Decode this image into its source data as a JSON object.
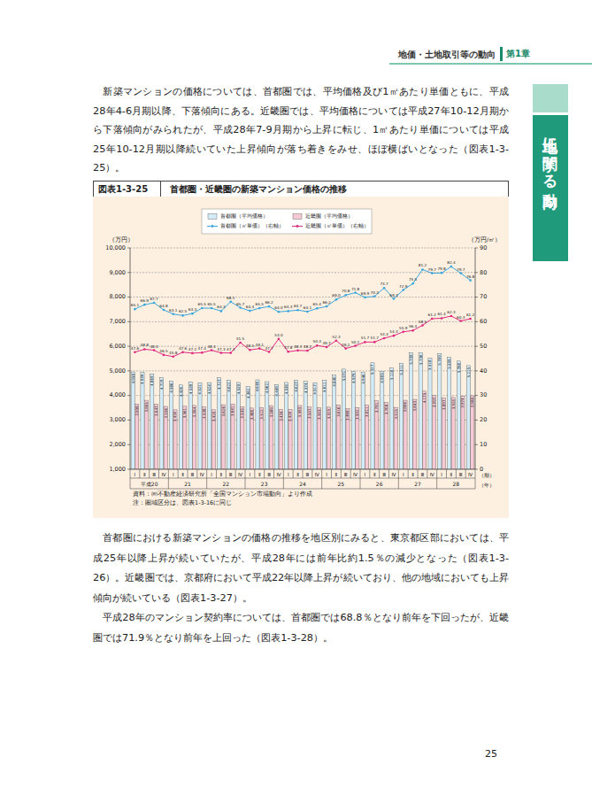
{
  "header": {
    "section": "地価・土地取引等の動向",
    "chapter": "第1章"
  },
  "side_tab": "土地に関する動向",
  "paragraphs_before": [
    "新築マンションの価格については、首都圏では、平均価格及び1㎡あたり単価ともに、平成28年4-6月期以降、下落傾向にある。近畿圏では、平均価格については平成27年10-12月期から下落傾向がみられたが、平成28年7-9月期から上昇に転じ、1㎡あたり単価については平成25年10-12月期以降続いていた上昇傾向が落ち着きをみせ、ほぼ横ばいとなった（図表1-3-25）。"
  ],
  "figure": {
    "label": "図表1-3-25",
    "source": "資料：㈱不動産経済研究所「全国マンション市場動向」より作成",
    "note": "注：圏域区分は、図表1-3-16に同じ"
  },
  "chart_data": {
    "type": "bar",
    "title": "首都圏・近畿圏の新築マンション価格の推移",
    "ylabel": "（万円）",
    "y2label": "（万円/㎡）",
    "xlabel": "（期）",
    "xgroup_label": "（年）",
    "categories": [
      "Ⅰ",
      "Ⅱ",
      "Ⅲ",
      "Ⅳ",
      "Ⅰ",
      "Ⅱ",
      "Ⅲ",
      "Ⅳ",
      "Ⅰ",
      "Ⅱ",
      "Ⅲ",
      "Ⅳ",
      "Ⅰ",
      "Ⅱ",
      "Ⅲ",
      "Ⅳ",
      "Ⅰ",
      "Ⅱ",
      "Ⅲ",
      "Ⅳ",
      "Ⅰ",
      "Ⅱ",
      "Ⅲ",
      "Ⅳ",
      "Ⅰ",
      "Ⅱ",
      "Ⅲ",
      "Ⅳ",
      "Ⅰ",
      "Ⅱ",
      "Ⅲ",
      "Ⅳ",
      "Ⅰ",
      "Ⅱ",
      "Ⅲ",
      "Ⅳ"
    ],
    "year_labels": [
      "平成20",
      "21",
      "22",
      "23",
      "24",
      "25",
      "26",
      "27",
      "28"
    ],
    "ylim": [
      1000,
      10000
    ],
    "yticks": [
      {
        "value": 1000,
        "label": "1,000"
      },
      {
        "value": 2000,
        "label": "2,000"
      },
      {
        "value": 3000,
        "label": "3,000"
      },
      {
        "value": 4000,
        "label": "4,000"
      },
      {
        "value": 5000,
        "label": "5,000"
      },
      {
        "value": 6000,
        "label": "6,000"
      },
      {
        "value": 7000,
        "label": "7,000"
      },
      {
        "value": 8000,
        "label": "8,000"
      },
      {
        "value": 9000,
        "label": "9,000"
      },
      {
        "value": 10000,
        "label": "10,000"
      }
    ],
    "y2lim": [
      0,
      90
    ],
    "y2ticks": [
      0,
      10,
      20,
      30,
      40,
      50,
      60,
      70,
      80,
      90
    ],
    "grid": true,
    "legend": "top",
    "data_labels": true,
    "series": [
      {
        "name": "首都圏（平均価格）",
        "type": "bar",
        "color": "#d3ecf8",
        "values": [
          4958,
          4939,
          4869,
          4719,
          4586,
          4426,
          4539,
          4521,
          4524,
          4727,
          4622,
          4529,
          4362,
          4636,
          4562,
          4449,
          4530,
          4627,
          4574,
          4517,
          4611,
          4840,
          5072,
          4979,
          4946,
          5327,
          4985,
          5118,
          5311,
          5739,
          5736,
          5518,
          5709,
          5559,
          5398,
          5215
        ],
        "value_labels": [
          "4,958",
          "4,939",
          "4,869",
          "4,719",
          "4,586",
          "4,426",
          "4,539",
          "4,521",
          "4,524",
          "4,727",
          "4,622",
          "4,529",
          "4,362",
          "4,636",
          "4,562",
          "4,449",
          "4,530",
          "4,627",
          "4,574",
          "4,517",
          "4,611",
          "4,840",
          "5,072",
          "4,979",
          "4,946",
          "5,327",
          "4,985",
          "5,118",
          "5,311",
          "5,739",
          "5,736",
          "5,518",
          "5,709",
          "5,559",
          "5,398",
          "5,215"
        ]
      },
      {
        "name": "近畿圏（平均価格）",
        "type": "bar",
        "color": "#f6c9d4",
        "values": [
          3656,
          3805,
          3647,
          3556,
          3416,
          3561,
          3594,
          3538,
          3418,
          3626,
          3641,
          3545,
          3488,
          3512,
          3589,
          3434,
          3420,
          3593,
          3537,
          3503,
          3525,
          3616,
          3468,
          3502,
          3611,
          3781,
          3708,
          3515,
          3806,
          3843,
          4175,
          3997,
          3897,
          3920,
          3974,
          3988
        ],
        "value_labels": [
          "3,656",
          "3,805",
          "3,647",
          "3,556",
          "3,416",
          "3,561",
          "3,594",
          "3,538",
          "3,418",
          "3,626",
          "3,641",
          "3,545",
          "3,488",
          "3,512",
          "3,589",
          "3,434",
          "3,420",
          "3,593",
          "3,537",
          "3,503",
          "3,525",
          "3,616",
          "3,468",
          "3,502",
          "3,611",
          "3,781",
          "3,708",
          "3,515",
          "3,806",
          "3,843",
          "4,175",
          "3,997",
          "3,897",
          "3,920",
          "3,974",
          "3,988"
        ]
      },
      {
        "name": "首都圏（㎡単価）（右軸）",
        "type": "line",
        "axis": "y2",
        "color": "#3aa6dd",
        "marker": "circle",
        "values": [
          65.1,
          66.9,
          67.7,
          64.8,
          63.1,
          62.5,
          63.3,
          65.5,
          65.5,
          64.3,
          68.1,
          65.7,
          64.4,
          65.5,
          66.2,
          64.0,
          64.3,
          64.7,
          64.1,
          65.4,
          66.2,
          69.0,
          70.8,
          71.8,
          69.9,
          70.3,
          73.7,
          69.3,
          72.9,
          75.5,
          81.2,
          79.7,
          79.8,
          82.4,
          79.7,
          76.8
        ],
        "value_labels": [
          "65.1",
          "66.9",
          "67.7",
          "64.8",
          "63.1",
          "62.5",
          "63.3",
          "65.5",
          "65.5",
          "64.3",
          "68.1",
          "65.7",
          "64.4",
          "65.5",
          "66.2",
          "64.0",
          "64.3",
          "64.7",
          "64.1",
          "65.4",
          "66.2",
          "69.0",
          "70.8",
          "71.8",
          "69.9",
          "70.3",
          "73.7",
          "69.3",
          "72.9",
          "75.5",
          "81.2",
          "79.7",
          "79.8",
          "82.4",
          "79.7",
          "76.8"
        ]
      },
      {
        "name": "近畿圏（㎡単価）（右軸）",
        "type": "line",
        "axis": "y2",
        "color": "#e0287f",
        "marker": "circle",
        "values": [
          47.6,
          48.8,
          48.4,
          46.5,
          45.8,
          47.6,
          47.2,
          47.4,
          48.4,
          47.3,
          47.3,
          51.5,
          48.5,
          49.1,
          47.7,
          53.0,
          47.8,
          48.3,
          48.2,
          50.3,
          49.7,
          52.3,
          49.1,
          50.2,
          51.7,
          51.7,
          53.3,
          54.3,
          55.9,
          56.4,
          58.5,
          61.2,
          61.4,
          62.3,
          60.3,
          61.2
        ],
        "value_labels": [
          "47.6",
          "48.8",
          "48.4",
          "46.5",
          "45.8",
          "47.6",
          "47.2",
          "47.4",
          "48.4",
          "47.3",
          "47.3",
          "51.5",
          "48.5",
          "49.1",
          "47.7",
          "53.0",
          "47.8",
          "48.3",
          "48.2",
          "50.3",
          "49.7",
          "52.3",
          "49.1",
          "50.2",
          "51.7",
          "51.7",
          "53.3",
          "54.3",
          "55.9",
          "56.4",
          "58.5",
          "61.2",
          "61.4",
          "62.3",
          "60.3",
          "61.2"
        ]
      }
    ]
  },
  "paragraphs_after": [
    "首都圏における新築マンションの価格の推移を地区別にみると、東京都区部においては、平成25年以降上昇が続いていたが、平成28年には前年比約1.5％の減少となった（図表1-3-26）。近畿圏では、京都府において平成22年以降上昇が続いており、他の地域においても上昇傾向が続いている（図表1-3-27）。",
    "平成28年のマンション契約率については、首都圏では68.8％となり前年を下回ったが、近畿圏では71.9％となり前年を上回った（図表1-3-28）。"
  ],
  "page_number": "25"
}
